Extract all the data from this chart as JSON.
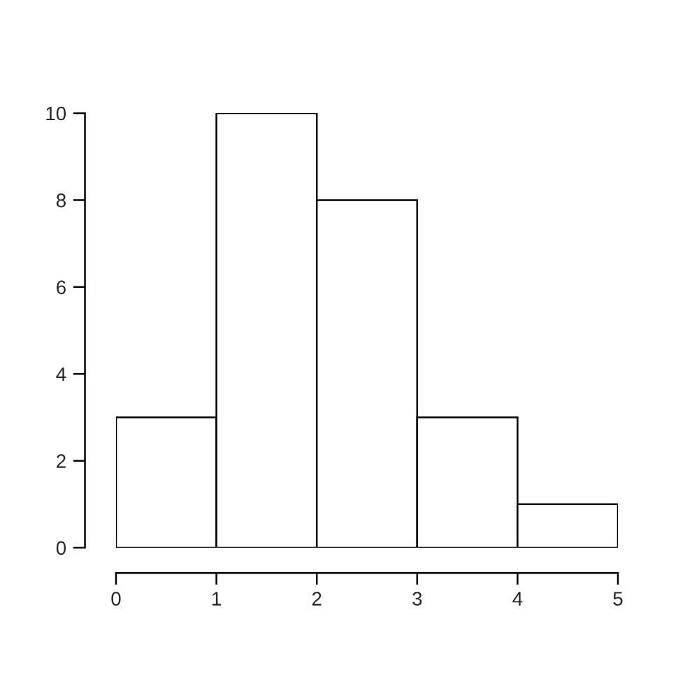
{
  "chart_data": {
    "type": "histogram",
    "bins": [
      0,
      1,
      2,
      3,
      4,
      5
    ],
    "values": [
      3,
      10,
      8,
      3,
      1
    ],
    "color": "#ffffff",
    "xlim": [
      0,
      5
    ],
    "xticks": [
      0,
      1,
      2,
      3,
      4,
      5
    ],
    "ylim": [
      0,
      10
    ],
    "yticks": [
      0,
      2,
      4,
      6,
      8,
      10
    ]
  }
}
